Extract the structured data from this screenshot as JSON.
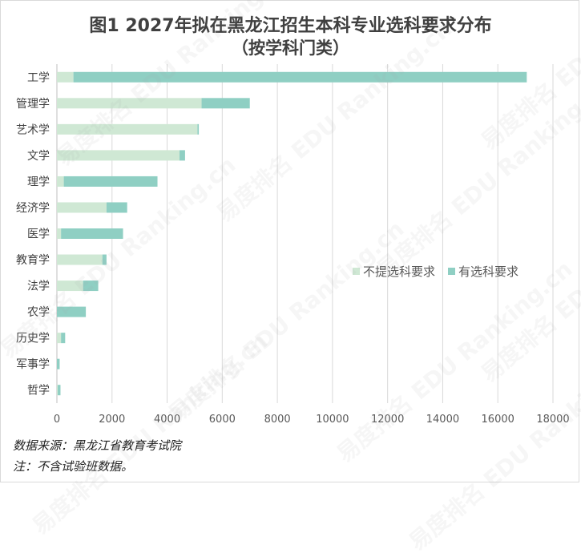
{
  "title_line1": "图1 2027年拟在黑龙江招生本科专业选科要求分布",
  "title_line2": "（按学科门类）",
  "legend": {
    "s0": "不提选科要求",
    "s1": "有选科要求"
  },
  "colors": {
    "s0": "#cfe8d4",
    "s1": "#8fcfc3"
  },
  "notes": {
    "source": "数据来源：黑龙江省教育考试院",
    "note": "注：不含试验班数据。"
  },
  "watermark": "易度排名 EDU Ranking.cn",
  "chart_data": {
    "type": "bar",
    "orientation": "horizontal",
    "stacked": true,
    "categories": [
      "工学",
      "管理学",
      "艺术学",
      "文学",
      "理学",
      "经济学",
      "医学",
      "教育学",
      "法学",
      "农学",
      "历史学",
      "军事学",
      "哲学"
    ],
    "series": [
      {
        "name": "不提选科要求",
        "values": [
          600,
          5250,
          5100,
          4450,
          250,
          1800,
          150,
          1650,
          950,
          0,
          150,
          0,
          30
        ]
      },
      {
        "name": "有选科要求",
        "values": [
          16450,
          1750,
          50,
          200,
          3400,
          750,
          2250,
          150,
          550,
          1050,
          150,
          100,
          100
        ]
      }
    ],
    "xlim": [
      0,
      18000
    ],
    "xticks": [
      0,
      2000,
      4000,
      6000,
      8000,
      10000,
      12000,
      14000,
      16000,
      18000
    ],
    "grid": true,
    "legend_position": "right"
  }
}
